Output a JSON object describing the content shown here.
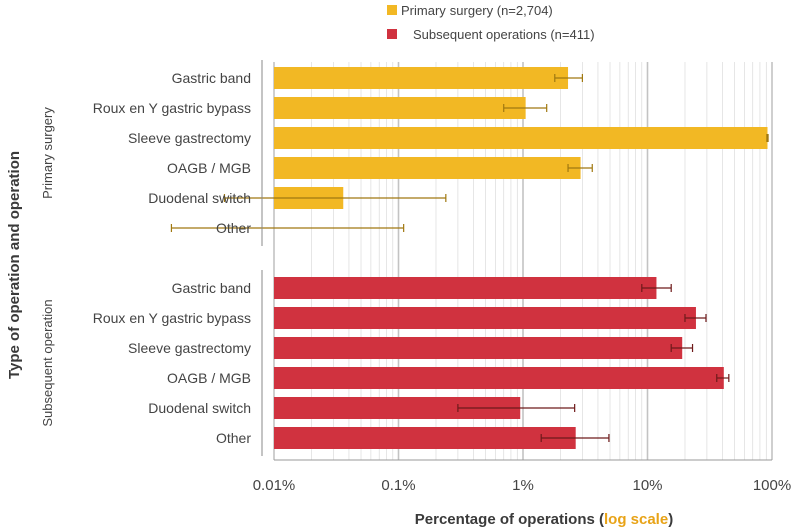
{
  "chart_data": {
    "type": "bar",
    "orientation": "horizontal",
    "x_scale": "log",
    "xlim": [
      0.01,
      100
    ],
    "x_ticks": [
      {
        "value": 0.01,
        "label": "0.01%"
      },
      {
        "value": 0.1,
        "label": "0.1%"
      },
      {
        "value": 1,
        "label": "1%"
      },
      {
        "value": 10,
        "label": "10%"
      },
      {
        "value": 100,
        "label": "100%"
      }
    ],
    "xlabel_main": "Percentage of operations (",
    "xlabel_highlight": "log scale",
    "xlabel_end": ")",
    "ylabel": "Type of operation and operation",
    "colors": {
      "primary": "#F2B824",
      "subsequent": "#D0323F",
      "primary_error": "#A07810",
      "subsequent_error": "#6E1A1A",
      "highlight": "#E8A317",
      "grid": "#BDBDBD"
    },
    "legend": [
      {
        "label_a": "Primary",
        "label_b": "surgery (n=2,704)",
        "series": "primary"
      },
      {
        "label": "Subsequent operations (n=411)",
        "series": "subsequent"
      }
    ],
    "series": [
      {
        "name": "Primary surgery",
        "key": "primary",
        "group_label": "Primary surgery",
        "categories": [
          "Gastric band",
          "Roux en Y gastric bypass",
          "Sleeve gastrectomy",
          "OAGB / MGB",
          "Duodenal switch",
          "Other"
        ],
        "values": [
          2.3,
          1.05,
          92,
          2.9,
          0.036,
          null
        ],
        "error_low": [
          1.8,
          0.7,
          91,
          2.3,
          0.004,
          0.0015
        ],
        "error_high": [
          3.0,
          1.55,
          93,
          3.6,
          0.24,
          0.11
        ]
      },
      {
        "name": "Subsequent operations",
        "key": "subsequent",
        "group_label": "Subsequent operation",
        "categories": [
          "Gastric band",
          "Roux en Y gastric bypass",
          "Sleeve gastrectomy",
          "OAGB / MGB",
          "Duodenal switch",
          "Other"
        ],
        "values": [
          11.8,
          24.5,
          19,
          41,
          0.95,
          2.65
        ],
        "error_low": [
          9.0,
          20,
          15.5,
          36,
          0.3,
          1.4
        ],
        "error_high": [
          15.5,
          29.5,
          23,
          45,
          2.6,
          4.9
        ]
      }
    ]
  }
}
